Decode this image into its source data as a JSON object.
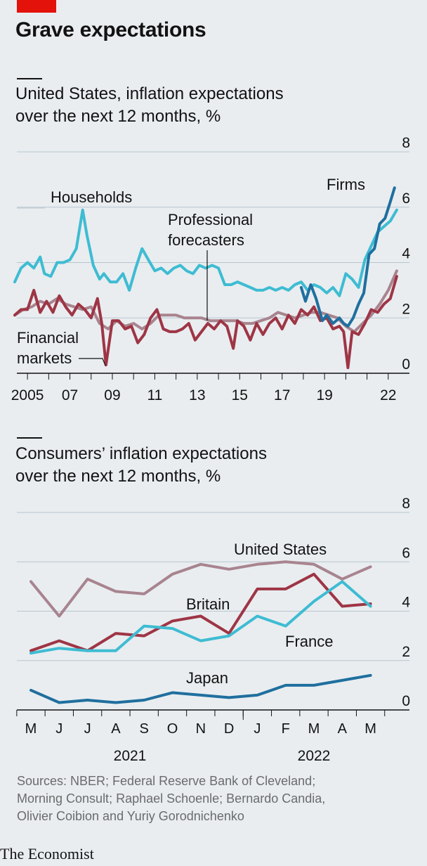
{
  "headline": "Grave expectations",
  "chart_data": [
    {
      "type": "line",
      "title": "United States, inflation expectations\nover the next 12 months, %",
      "ylim": [
        0,
        8
      ],
      "yticks": [
        0,
        2,
        4,
        6,
        8
      ],
      "xlim": [
        2004.5,
        2023.0
      ],
      "xtick_labels": [
        {
          "year": 2005,
          "label": "2005"
        },
        {
          "year": 2007,
          "label": "07"
        },
        {
          "year": 2009,
          "label": "09"
        },
        {
          "year": 2011,
          "label": "11"
        },
        {
          "year": 2013,
          "label": "13"
        },
        {
          "year": 2015,
          "label": "15"
        },
        {
          "year": 2017,
          "label": "17"
        },
        {
          "year": 2019,
          "label": "19"
        },
        {
          "year": 2022,
          "label": "22"
        }
      ],
      "series": [
        {
          "name": "Households",
          "color": "#3ebcd2",
          "x": [
            2004.4,
            2004.7,
            2005.0,
            2005.3,
            2005.6,
            2005.8,
            2006.1,
            2006.4,
            2006.7,
            2007.0,
            2007.3,
            2007.6,
            2007.8,
            2008.1,
            2008.4,
            2008.6,
            2008.9,
            2009.2,
            2009.5,
            2009.8,
            2010.1,
            2010.4,
            2010.7,
            2011.0,
            2011.3,
            2011.6,
            2011.9,
            2012.2,
            2012.5,
            2012.8,
            2013.1,
            2013.4,
            2013.7,
            2014.0,
            2014.3,
            2014.6,
            2014.9,
            2015.2,
            2015.5,
            2015.8,
            2016.1,
            2016.4,
            2016.7,
            2017.0,
            2017.3,
            2017.6,
            2017.9,
            2018.2,
            2018.5,
            2018.8,
            2019.1,
            2019.4,
            2019.7,
            2020.0,
            2020.3,
            2020.6,
            2020.9,
            2021.2,
            2021.5,
            2021.8,
            2022.1,
            2022.4
          ],
          "values": [
            3.3,
            3.8,
            4.0,
            3.8,
            4.2,
            3.6,
            3.5,
            4.0,
            4.0,
            4.1,
            4.5,
            5.9,
            5.0,
            3.9,
            3.4,
            3.6,
            3.3,
            3.3,
            3.6,
            3.0,
            3.8,
            4.5,
            4.1,
            3.7,
            3.8,
            3.6,
            3.8,
            3.9,
            3.7,
            3.6,
            3.9,
            3.8,
            3.9,
            3.8,
            3.2,
            3.2,
            3.3,
            3.2,
            3.1,
            3.0,
            3.0,
            3.1,
            3.0,
            3.1,
            3.0,
            3.2,
            3.3,
            3.0,
            3.2,
            3.1,
            2.9,
            3.1,
            2.8,
            3.6,
            3.4,
            3.1,
            4.1,
            4.6,
            5.1,
            5.3,
            5.5,
            5.9
          ]
        },
        {
          "name": "Professional forecasters",
          "color": "#a8848f",
          "x": [
            2004.4,
            2004.8,
            2005.2,
            2005.6,
            2006.0,
            2006.4,
            2006.8,
            2007.2,
            2007.6,
            2008.0,
            2008.4,
            2008.8,
            2009.2,
            2009.6,
            2010.0,
            2010.4,
            2010.8,
            2011.2,
            2011.6,
            2012.0,
            2012.4,
            2012.8,
            2013.2,
            2013.6,
            2014.0,
            2014.4,
            2014.8,
            2015.2,
            2015.6,
            2016.0,
            2016.4,
            2016.8,
            2017.2,
            2017.6,
            2018.0,
            2018.4,
            2018.8,
            2019.2,
            2019.6,
            2020.0,
            2020.4,
            2020.8,
            2021.2,
            2021.6,
            2022.0,
            2022.4
          ],
          "values": [
            2.1,
            2.3,
            2.4,
            2.6,
            2.5,
            2.7,
            2.5,
            2.4,
            2.3,
            2.4,
            1.8,
            1.6,
            1.9,
            1.7,
            1.8,
            1.6,
            1.8,
            2.1,
            2.1,
            2.1,
            2.0,
            2.0,
            2.0,
            1.9,
            1.9,
            1.9,
            1.9,
            1.8,
            1.8,
            1.9,
            2.0,
            2.2,
            2.1,
            2.0,
            2.1,
            2.2,
            2.2,
            2.1,
            2.0,
            1.7,
            1.5,
            1.8,
            2.1,
            2.5,
            3.0,
            3.7
          ]
        },
        {
          "name": "Financial markets",
          "color": "#9e3545",
          "x": [
            2004.4,
            2004.7,
            2005.0,
            2005.3,
            2005.6,
            2005.9,
            2006.2,
            2006.5,
            2006.8,
            2007.1,
            2007.4,
            2007.7,
            2008.0,
            2008.3,
            2008.5,
            2008.7,
            2009.0,
            2009.3,
            2009.6,
            2009.9,
            2010.2,
            2010.5,
            2010.8,
            2011.1,
            2011.4,
            2011.7,
            2012.0,
            2012.3,
            2012.6,
            2012.9,
            2013.2,
            2013.5,
            2013.8,
            2014.1,
            2014.4,
            2014.7,
            2014.9,
            2015.2,
            2015.5,
            2015.8,
            2016.1,
            2016.4,
            2016.7,
            2017.0,
            2017.3,
            2017.6,
            2017.9,
            2018.2,
            2018.5,
            2018.8,
            2019.1,
            2019.4,
            2019.7,
            2019.9,
            2020.1,
            2020.3,
            2020.6,
            2020.9,
            2021.2,
            2021.5,
            2021.8,
            2022.1,
            2022.4
          ],
          "values": [
            2.1,
            2.3,
            2.3,
            3.0,
            2.2,
            2.6,
            2.2,
            2.8,
            2.4,
            2.1,
            2.5,
            2.3,
            2.0,
            2.7,
            1.8,
            0.3,
            1.9,
            1.9,
            1.6,
            1.7,
            1.1,
            1.4,
            2.0,
            2.3,
            1.6,
            1.5,
            1.5,
            1.6,
            1.8,
            1.2,
            1.5,
            1.8,
            1.6,
            1.9,
            1.7,
            0.9,
            1.9,
            1.7,
            1.2,
            1.8,
            1.4,
            1.8,
            2.0,
            1.6,
            2.1,
            1.8,
            2.3,
            2.1,
            2.4,
            1.9,
            2.0,
            1.6,
            1.7,
            1.5,
            0.2,
            1.5,
            1.4,
            1.8,
            2.3,
            2.2,
            2.5,
            2.7,
            3.5
          ]
        },
        {
          "name": "Firms",
          "color": "#1f6f9e",
          "x": [
            2017.9,
            2018.1,
            2018.35,
            2018.6,
            2018.9,
            2019.1,
            2019.4,
            2019.7,
            2019.9,
            2020.1,
            2020.35,
            2020.6,
            2020.85,
            2021.1,
            2021.35,
            2021.6,
            2021.85,
            2022.1,
            2022.3
          ],
          "values": [
            3.1,
            2.6,
            3.2,
            2.7,
            1.9,
            2.1,
            1.8,
            2.0,
            1.8,
            1.7,
            2.0,
            2.5,
            2.9,
            4.3,
            4.5,
            5.4,
            5.6,
            6.2,
            6.7
          ]
        }
      ],
      "labels": {
        "households": "Households",
        "forecasters_line1": "Professional",
        "forecasters_line2": "forecasters",
        "firms": "Firms",
        "markets_line1": "Financial",
        "markets_line2": "markets"
      }
    },
    {
      "type": "line",
      "title": "Consumers’ inflation expectations\nover the next 12 months, %",
      "ylim": [
        0,
        8
      ],
      "yticks": [
        0,
        2,
        4,
        6,
        8
      ],
      "categories": [
        "M",
        "J",
        "J",
        "A",
        "S",
        "O",
        "N",
        "D",
        "J",
        "F",
        "M",
        "A",
        "M"
      ],
      "years": [
        "2021",
        "2022"
      ],
      "series": [
        {
          "name": "United States",
          "color": "#a8848f",
          "values": [
            5.2,
            3.8,
            5.3,
            4.8,
            4.7,
            5.5,
            5.9,
            5.7,
            5.9,
            6.0,
            5.9,
            5.3,
            5.8
          ]
        },
        {
          "name": "Britain",
          "color": "#9e3545",
          "values": [
            2.4,
            2.8,
            2.4,
            3.1,
            3.0,
            3.6,
            3.8,
            3.1,
            4.9,
            4.9,
            5.5,
            4.2,
            4.3
          ]
        },
        {
          "name": "France",
          "color": "#3ebcd2",
          "values": [
            2.3,
            2.5,
            2.4,
            2.4,
            3.4,
            3.3,
            2.8,
            3.0,
            3.8,
            3.4,
            4.4,
            5.2,
            4.2
          ]
        },
        {
          "name": "Japan",
          "color": "#1f6f9e",
          "values": [
            0.8,
            0.3,
            0.4,
            0.3,
            0.4,
            0.7,
            0.6,
            0.5,
            0.6,
            1.0,
            1.0,
            1.2,
            1.4
          ]
        }
      ]
    }
  ],
  "sources": "Sources: NBER; Federal Reserve Bank of Cleveland;\nMorning Consult; Raphael Schoenle; Bernardo Candia,\nOlivier Coibion and Yuriy Gorodnichenko",
  "logo": "The Economist"
}
